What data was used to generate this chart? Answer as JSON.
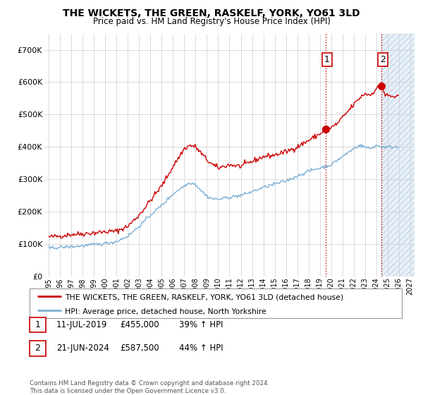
{
  "title": "THE WICKETS, THE GREEN, RASKELF, YORK, YO61 3LD",
  "subtitle": "Price paid vs. HM Land Registry's House Price Index (HPI)",
  "legend_line1": "THE WICKETS, THE GREEN, RASKELF, YORK, YO61 3LD (detached house)",
  "legend_line2": "HPI: Average price, detached house, North Yorkshire",
  "annotation1_label": "1",
  "annotation1_date": "11-JUL-2019",
  "annotation1_price": "£455,000",
  "annotation1_hpi": "39% ↑ HPI",
  "annotation1_year": 2019.53,
  "annotation1_value": 455000,
  "annotation2_label": "2",
  "annotation2_date": "21-JUN-2024",
  "annotation2_price": "£587,500",
  "annotation2_hpi": "44% ↑ HPI",
  "annotation2_year": 2024.47,
  "annotation2_value": 587500,
  "red_line_color": "#cc0000",
  "blue_line_color": "#7bafd4",
  "background_color": "#ffffff",
  "grid_color": "#cccccc",
  "shaded_color": "#ddeeff",
  "xlim": [
    1994.6,
    2027.4
  ],
  "ylim": [
    0,
    750000
  ],
  "yticks": [
    0,
    100000,
    200000,
    300000,
    400000,
    500000,
    600000,
    700000
  ],
  "xtick_years": [
    1995,
    1996,
    1997,
    1998,
    1999,
    2000,
    2001,
    2002,
    2003,
    2004,
    2005,
    2006,
    2007,
    2008,
    2009,
    2010,
    2011,
    2012,
    2013,
    2014,
    2015,
    2016,
    2017,
    2018,
    2019,
    2020,
    2021,
    2022,
    2023,
    2024,
    2025,
    2026,
    2027
  ],
  "footer": "Contains HM Land Registry data © Crown copyright and database right 2024.\nThis data is licensed under the Open Government Licence v3.0."
}
